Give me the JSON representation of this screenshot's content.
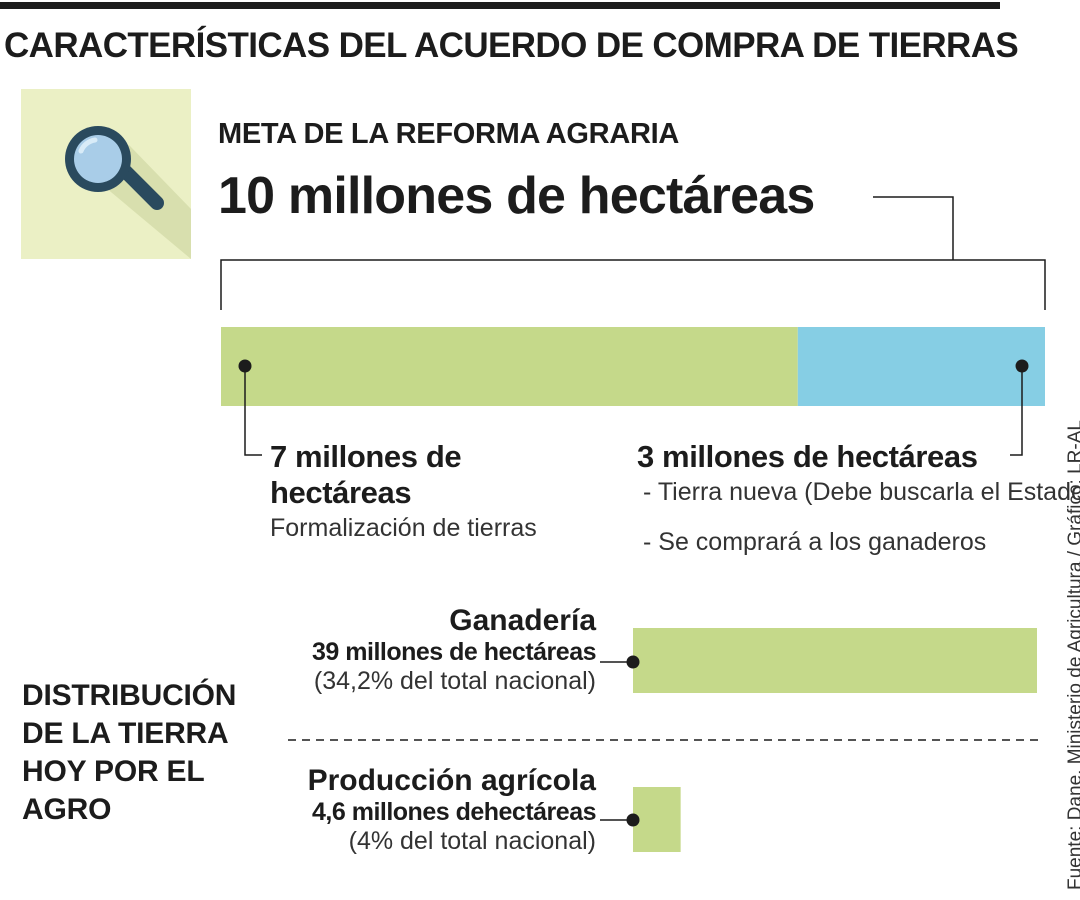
{
  "title": "CARACTERÍSTICAS DEL ACUERDO DE COMPRA DE TIERRAS",
  "meta": {
    "label": "META DE LA REFORMA AGRARIA",
    "value": "10 millones de hectáreas"
  },
  "split": {
    "left": {
      "title_line1": "7 millones de",
      "title_line2": "hectáreas",
      "note": "Formalización de tierras",
      "value": 7
    },
    "right": {
      "title": "3 millones de hectáreas",
      "note1": "- Tierra nueva (Debe buscarla el Estado)",
      "note2": "- Se comprará a los ganaderos",
      "value": 3
    }
  },
  "distribution": {
    "heading_lines": [
      "DISTRIBUCIÓN",
      "DE LA TIERRA",
      "HOY POR EL",
      "AGRO"
    ],
    "items": [
      {
        "name": "Ganadería",
        "value_text": "39 millones de hectáreas",
        "pct_text": "(34,2% del total nacional)",
        "value": 39
      },
      {
        "name": "Producción agrícola",
        "value_text": "4,6 millones dehectáreas",
        "pct_text": "(4% del total nacional)",
        "value": 4.6
      }
    ]
  },
  "source": "Fuente: Dane, Ministerio de Agricultura / Gráfico: LR-AL",
  "colors": {
    "green": "#c5d98a",
    "blue": "#86cee4",
    "dark": "#1c1c1c",
    "icon_bg": "#ebf0c5",
    "lens": "#a9cde8",
    "handle": "#2a4a5e"
  },
  "chart_data": [
    {
      "type": "bar",
      "title": "META DE LA REFORMA AGRARIA",
      "categories": [
        "Formalización de tierras",
        "Tierra nueva"
      ],
      "values": [
        7,
        3
      ],
      "unit": "millones de hectáreas",
      "total": 10,
      "stacked": true
    },
    {
      "type": "bar",
      "title": "DISTRIBUCIÓN DE LA TIERRA HOY POR EL AGRO",
      "categories": [
        "Ganadería",
        "Producción agrícola"
      ],
      "values": [
        39,
        4.6
      ],
      "percent_of_total": [
        34.2,
        4
      ],
      "unit": "millones de hectáreas"
    }
  ]
}
